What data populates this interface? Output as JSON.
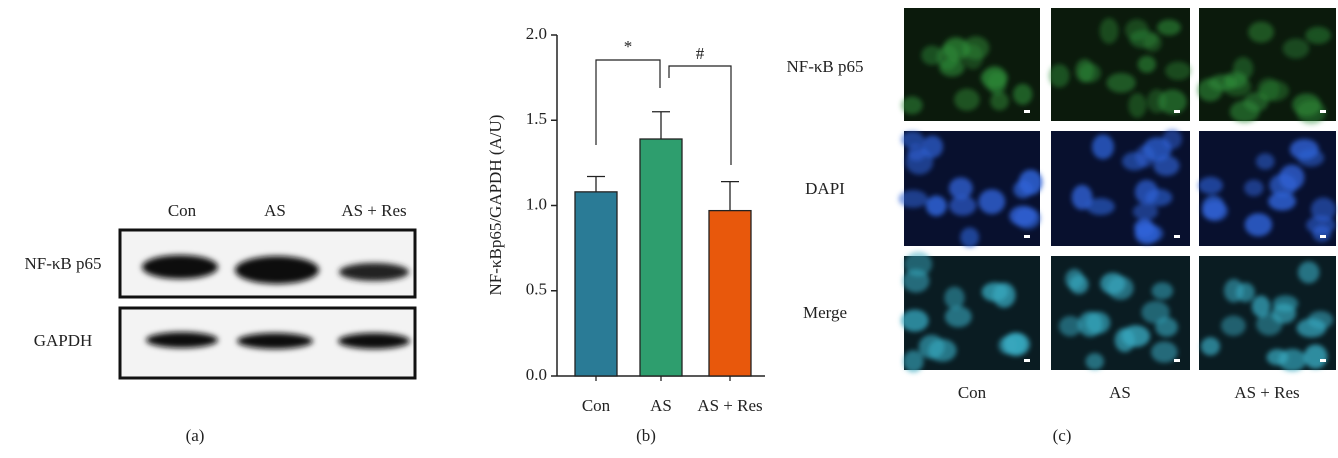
{
  "panel_a": {
    "lanes": [
      "Con",
      "AS",
      "AS + Res"
    ],
    "rows": [
      "NF-κB p65",
      "GAPDH"
    ],
    "label": "(a)"
  },
  "chart_data": {
    "type": "bar",
    "y_label": "NF-κBp65/GAPDH (A/U)",
    "categories": [
      "Con",
      "AS",
      "AS + Res"
    ],
    "values": [
      1.08,
      1.39,
      0.97
    ],
    "errors": [
      0.09,
      0.16,
      0.17
    ],
    "colors": [
      "#2a7b96",
      "#2e9e6e",
      "#e8580c"
    ],
    "ylim": [
      0,
      2
    ],
    "yticks": [
      {
        "value": 0,
        "label": "0.0"
      },
      0.5,
      {
        "value": 1,
        "label": "1.0"
      },
      1.5,
      {
        "value": 2,
        "label": "2.0"
      }
    ],
    "annotations": [
      "*",
      "#"
    ],
    "label": "(b)"
  },
  "panel_c": {
    "rows": [
      "NF-κB p65",
      "DAPI",
      "Merge"
    ],
    "columns": [
      "Con",
      "AS",
      "AS + Res"
    ],
    "label": "(c)"
  }
}
